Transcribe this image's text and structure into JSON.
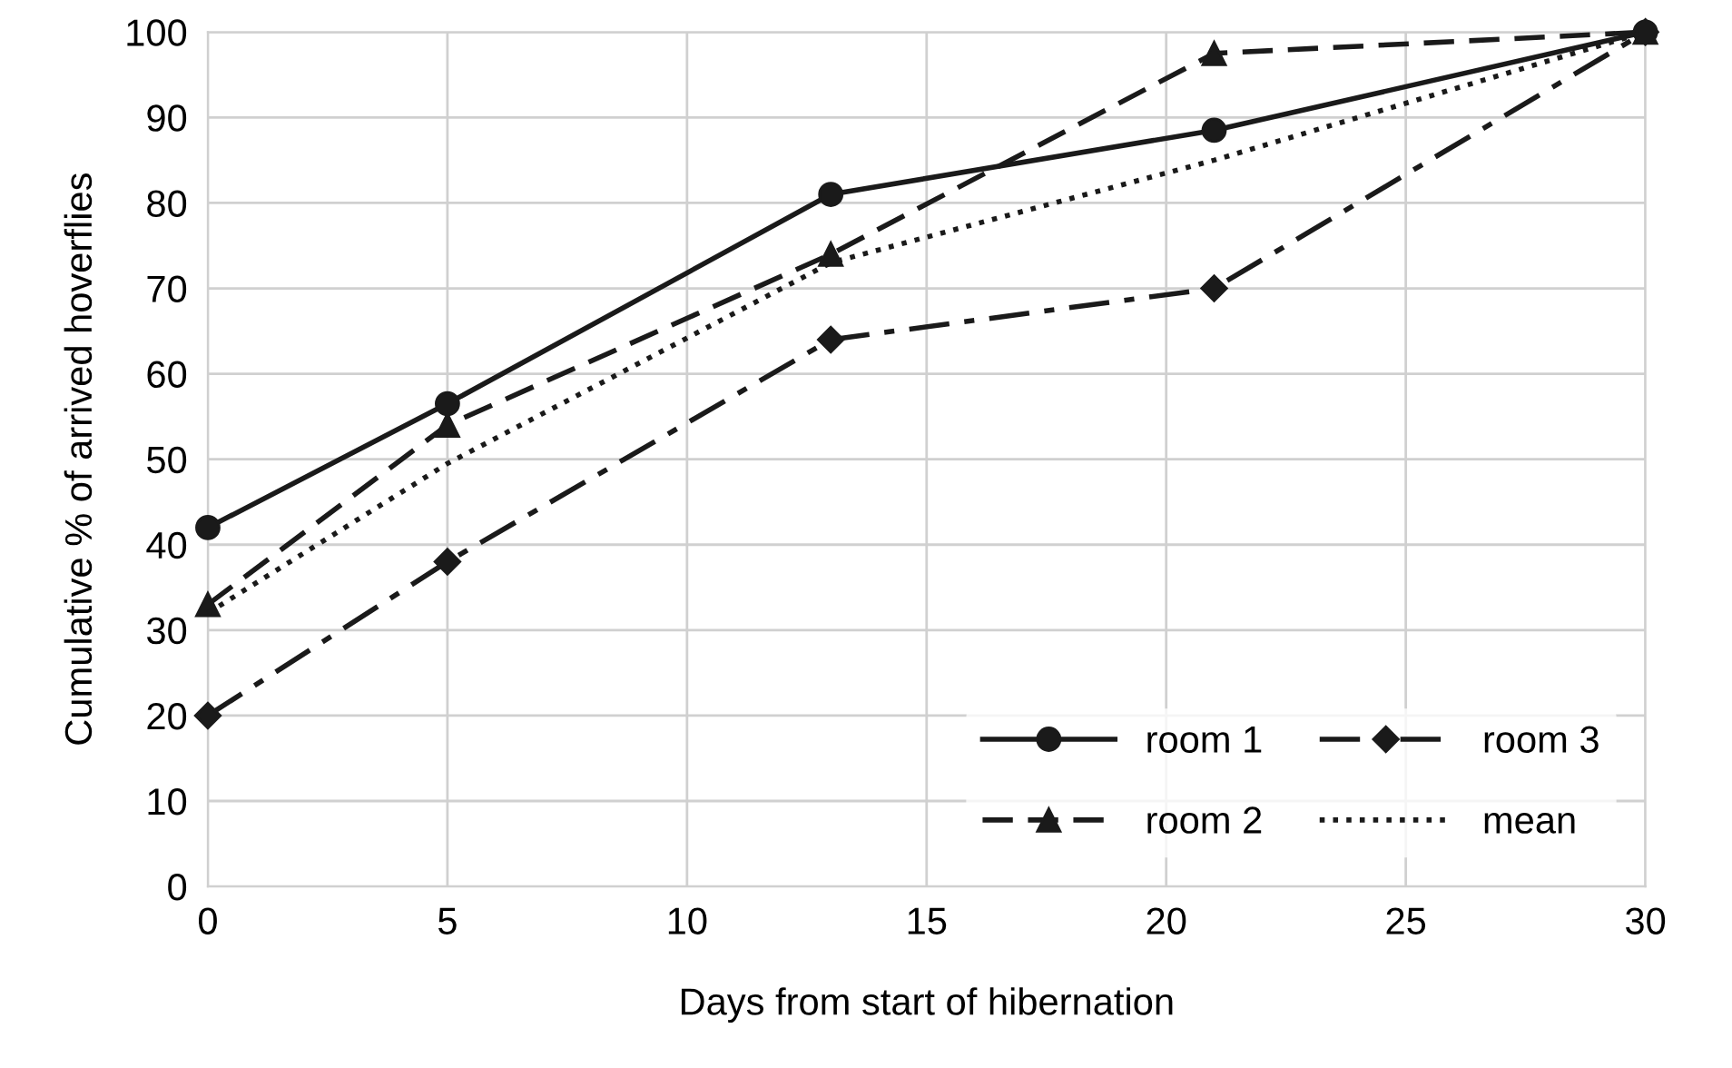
{
  "chart_data": {
    "type": "line",
    "xlabel": "Days from start of hibernation",
    "ylabel": "Cumulative % of arrived hoverflies",
    "x": [
      0,
      5,
      13,
      21,
      30
    ],
    "series": [
      {
        "name": "room 1",
        "color": "#1a1a1a",
        "values": [
          42,
          56.5,
          81,
          88.5,
          100
        ],
        "marker": "circle",
        "line_style": "solid"
      },
      {
        "name": "room 2",
        "color": "#1a1a1a",
        "values": [
          33,
          54,
          74,
          97.5,
          100
        ],
        "marker": "triangle",
        "line_style": "dashed"
      },
      {
        "name": "room 3",
        "color": "#1a1a1a",
        "values": [
          20,
          38,
          64,
          70,
          100
        ],
        "marker": "diamond",
        "line_style": "dashdot"
      },
      {
        "name": "mean",
        "color": "#1a1a1a",
        "values": [
          32,
          49.5,
          73,
          85,
          100
        ],
        "marker": "none",
        "line_style": "dotted"
      }
    ],
    "xlim": [
      0,
      30
    ],
    "xticks": [
      0,
      5,
      10,
      15,
      20,
      25,
      30
    ],
    "ylim": [
      0,
      100
    ],
    "yticks": [
      0,
      10,
      20,
      30,
      40,
      50,
      60,
      70,
      80,
      90,
      100
    ],
    "grid": true,
    "legend": "bottom right"
  }
}
